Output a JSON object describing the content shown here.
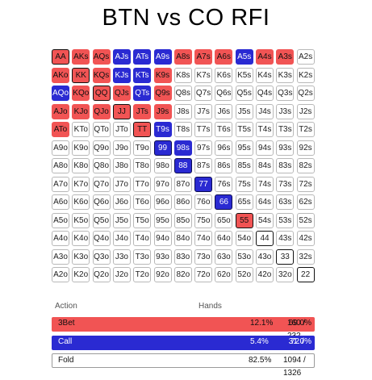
{
  "title": "BTN vs CO RFI",
  "colors": {
    "threebet": "#f15454",
    "call": "#2a2ad2",
    "fold": "#ffffff"
  },
  "grid": [
    [
      [
        "AA",
        "r",
        1
      ],
      [
        "AKs",
        "r",
        0
      ],
      [
        "AQs",
        "r",
        0
      ],
      [
        "AJs",
        "b",
        0
      ],
      [
        "ATs",
        "b",
        0
      ],
      [
        "A9s",
        "b",
        0
      ],
      [
        "A8s",
        "r",
        0
      ],
      [
        "A7s",
        "r",
        0
      ],
      [
        "A6s",
        "r",
        0
      ],
      [
        "A5s",
        "b",
        0
      ],
      [
        "A4s",
        "r",
        0
      ],
      [
        "A3s",
        "r",
        0
      ],
      [
        "A2s",
        "",
        0
      ]
    ],
    [
      [
        "AKo",
        "r",
        0
      ],
      [
        "KK",
        "r",
        1
      ],
      [
        "KQs",
        "r",
        0
      ],
      [
        "KJs",
        "b",
        0
      ],
      [
        "KTs",
        "b",
        0
      ],
      [
        "K9s",
        "r",
        0
      ],
      [
        "K8s",
        "",
        0
      ],
      [
        "K7s",
        "",
        0
      ],
      [
        "K6s",
        "",
        0
      ],
      [
        "K5s",
        "",
        0
      ],
      [
        "K4s",
        "",
        0
      ],
      [
        "K3s",
        "",
        0
      ],
      [
        "K2s",
        "",
        0
      ]
    ],
    [
      [
        "AQo",
        "b",
        0
      ],
      [
        "KQo",
        "r",
        0
      ],
      [
        "QQ",
        "r",
        1
      ],
      [
        "QJs",
        "r",
        0
      ],
      [
        "QTs",
        "b",
        0
      ],
      [
        "Q9s",
        "r",
        0
      ],
      [
        "Q8s",
        "",
        0
      ],
      [
        "Q7s",
        "",
        0
      ],
      [
        "Q6s",
        "",
        0
      ],
      [
        "Q5s",
        "",
        0
      ],
      [
        "Q4s",
        "",
        0
      ],
      [
        "Q3s",
        "",
        0
      ],
      [
        "Q2s",
        "",
        0
      ]
    ],
    [
      [
        "AJo",
        "r",
        0
      ],
      [
        "KJo",
        "r",
        0
      ],
      [
        "QJo",
        "r",
        0
      ],
      [
        "JJ",
        "r",
        1
      ],
      [
        "JTs",
        "r",
        0
      ],
      [
        "J9s",
        "r",
        0
      ],
      [
        "J8s",
        "",
        0
      ],
      [
        "J7s",
        "",
        0
      ],
      [
        "J6s",
        "",
        0
      ],
      [
        "J5s",
        "",
        0
      ],
      [
        "J4s",
        "",
        0
      ],
      [
        "J3s",
        "",
        0
      ],
      [
        "J2s",
        "",
        0
      ]
    ],
    [
      [
        "ATo",
        "r",
        0
      ],
      [
        "KTo",
        "",
        0
      ],
      [
        "QTo",
        "",
        0
      ],
      [
        "JTo",
        "",
        0
      ],
      [
        "TT",
        "r",
        1
      ],
      [
        "T9s",
        "b",
        0
      ],
      [
        "T8s",
        "",
        0
      ],
      [
        "T7s",
        "",
        0
      ],
      [
        "T6s",
        "",
        0
      ],
      [
        "T5s",
        "",
        0
      ],
      [
        "T4s",
        "",
        0
      ],
      [
        "T3s",
        "",
        0
      ],
      [
        "T2s",
        "",
        0
      ]
    ],
    [
      [
        "A9o",
        "",
        0
      ],
      [
        "K9o",
        "",
        0
      ],
      [
        "Q9o",
        "",
        0
      ],
      [
        "J9o",
        "",
        0
      ],
      [
        "T9o",
        "",
        0
      ],
      [
        "99",
        "b",
        1
      ],
      [
        "98s",
        "b",
        0
      ],
      [
        "97s",
        "",
        0
      ],
      [
        "96s",
        "",
        0
      ],
      [
        "95s",
        "",
        0
      ],
      [
        "94s",
        "",
        0
      ],
      [
        "93s",
        "",
        0
      ],
      [
        "92s",
        "",
        0
      ]
    ],
    [
      [
        "A8o",
        "",
        0
      ],
      [
        "K8o",
        "",
        0
      ],
      [
        "Q8o",
        "",
        0
      ],
      [
        "J8o",
        "",
        0
      ],
      [
        "T8o",
        "",
        0
      ],
      [
        "98o",
        "",
        0
      ],
      [
        "88",
        "b",
        1
      ],
      [
        "87s",
        "",
        0
      ],
      [
        "86s",
        "",
        0
      ],
      [
        "85s",
        "",
        0
      ],
      [
        "84s",
        "",
        0
      ],
      [
        "83s",
        "",
        0
      ],
      [
        "82s",
        "",
        0
      ]
    ],
    [
      [
        "A7o",
        "",
        0
      ],
      [
        "K7o",
        "",
        0
      ],
      [
        "Q7o",
        "",
        0
      ],
      [
        "J7o",
        "",
        0
      ],
      [
        "T7o",
        "",
        0
      ],
      [
        "97o",
        "",
        0
      ],
      [
        "87o",
        "",
        0
      ],
      [
        "77",
        "b",
        1
      ],
      [
        "76s",
        "",
        0
      ],
      [
        "75s",
        "",
        0
      ],
      [
        "74s",
        "",
        0
      ],
      [
        "73s",
        "",
        0
      ],
      [
        "72s",
        "",
        0
      ]
    ],
    [
      [
        "A6o",
        "",
        0
      ],
      [
        "K6o",
        "",
        0
      ],
      [
        "Q6o",
        "",
        0
      ],
      [
        "J6o",
        "",
        0
      ],
      [
        "T6o",
        "",
        0
      ],
      [
        "96o",
        "",
        0
      ],
      [
        "86o",
        "",
        0
      ],
      [
        "76o",
        "",
        0
      ],
      [
        "66",
        "b",
        1
      ],
      [
        "65s",
        "",
        0
      ],
      [
        "64s",
        "",
        0
      ],
      [
        "63s",
        "",
        0
      ],
      [
        "62s",
        "",
        0
      ]
    ],
    [
      [
        "A5o",
        "",
        0
      ],
      [
        "K5o",
        "",
        0
      ],
      [
        "Q5o",
        "",
        0
      ],
      [
        "J5o",
        "",
        0
      ],
      [
        "T5o",
        "",
        0
      ],
      [
        "95o",
        "",
        0
      ],
      [
        "85o",
        "",
        0
      ],
      [
        "75o",
        "",
        0
      ],
      [
        "65o",
        "",
        0
      ],
      [
        "55",
        "r",
        1
      ],
      [
        "54s",
        "",
        0
      ],
      [
        "53s",
        "",
        0
      ],
      [
        "52s",
        "",
        0
      ]
    ],
    [
      [
        "A4o",
        "",
        0
      ],
      [
        "K4o",
        "",
        0
      ],
      [
        "Q4o",
        "",
        0
      ],
      [
        "J4o",
        "",
        0
      ],
      [
        "T4o",
        "",
        0
      ],
      [
        "94o",
        "",
        0
      ],
      [
        "84o",
        "",
        0
      ],
      [
        "74o",
        "",
        0
      ],
      [
        "64o",
        "",
        0
      ],
      [
        "54o",
        "",
        0
      ],
      [
        "44",
        "",
        1
      ],
      [
        "43s",
        "",
        0
      ],
      [
        "42s",
        "",
        0
      ]
    ],
    [
      [
        "A3o",
        "",
        0
      ],
      [
        "K3o",
        "",
        0
      ],
      [
        "Q3o",
        "",
        0
      ],
      [
        "J3o",
        "",
        0
      ],
      [
        "T3o",
        "",
        0
      ],
      [
        "93o",
        "",
        0
      ],
      [
        "83o",
        "",
        0
      ],
      [
        "73o",
        "",
        0
      ],
      [
        "63o",
        "",
        0
      ],
      [
        "53o",
        "",
        0
      ],
      [
        "43o",
        "",
        0
      ],
      [
        "33",
        "",
        1
      ],
      [
        "32s",
        "",
        0
      ]
    ],
    [
      [
        "A2o",
        "",
        0
      ],
      [
        "K2o",
        "",
        0
      ],
      [
        "Q2o",
        "",
        0
      ],
      [
        "J2o",
        "",
        0
      ],
      [
        "T2o",
        "",
        0
      ],
      [
        "92o",
        "",
        0
      ],
      [
        "82o",
        "",
        0
      ],
      [
        "72o",
        "",
        0
      ],
      [
        "62o",
        "",
        0
      ],
      [
        "52o",
        "",
        0
      ],
      [
        "42o",
        "",
        0
      ],
      [
        "32o",
        "",
        0
      ],
      [
        "22",
        "",
        1
      ]
    ]
  ],
  "summary": {
    "col_action": "Action",
    "col_hands": "Hands",
    "rows": [
      {
        "action": "3Bet",
        "pct": "12.1%",
        "combos": "160 / 232",
        "range_pct": "69.0%"
      },
      {
        "action": "Call",
        "pct": "5.4%",
        "combos": "72 / 232",
        "range_pct": "31.0%"
      },
      {
        "action": "Fold",
        "pct": "82.5%",
        "combos": "1094 / 1326",
        "range_pct": ""
      }
    ]
  }
}
